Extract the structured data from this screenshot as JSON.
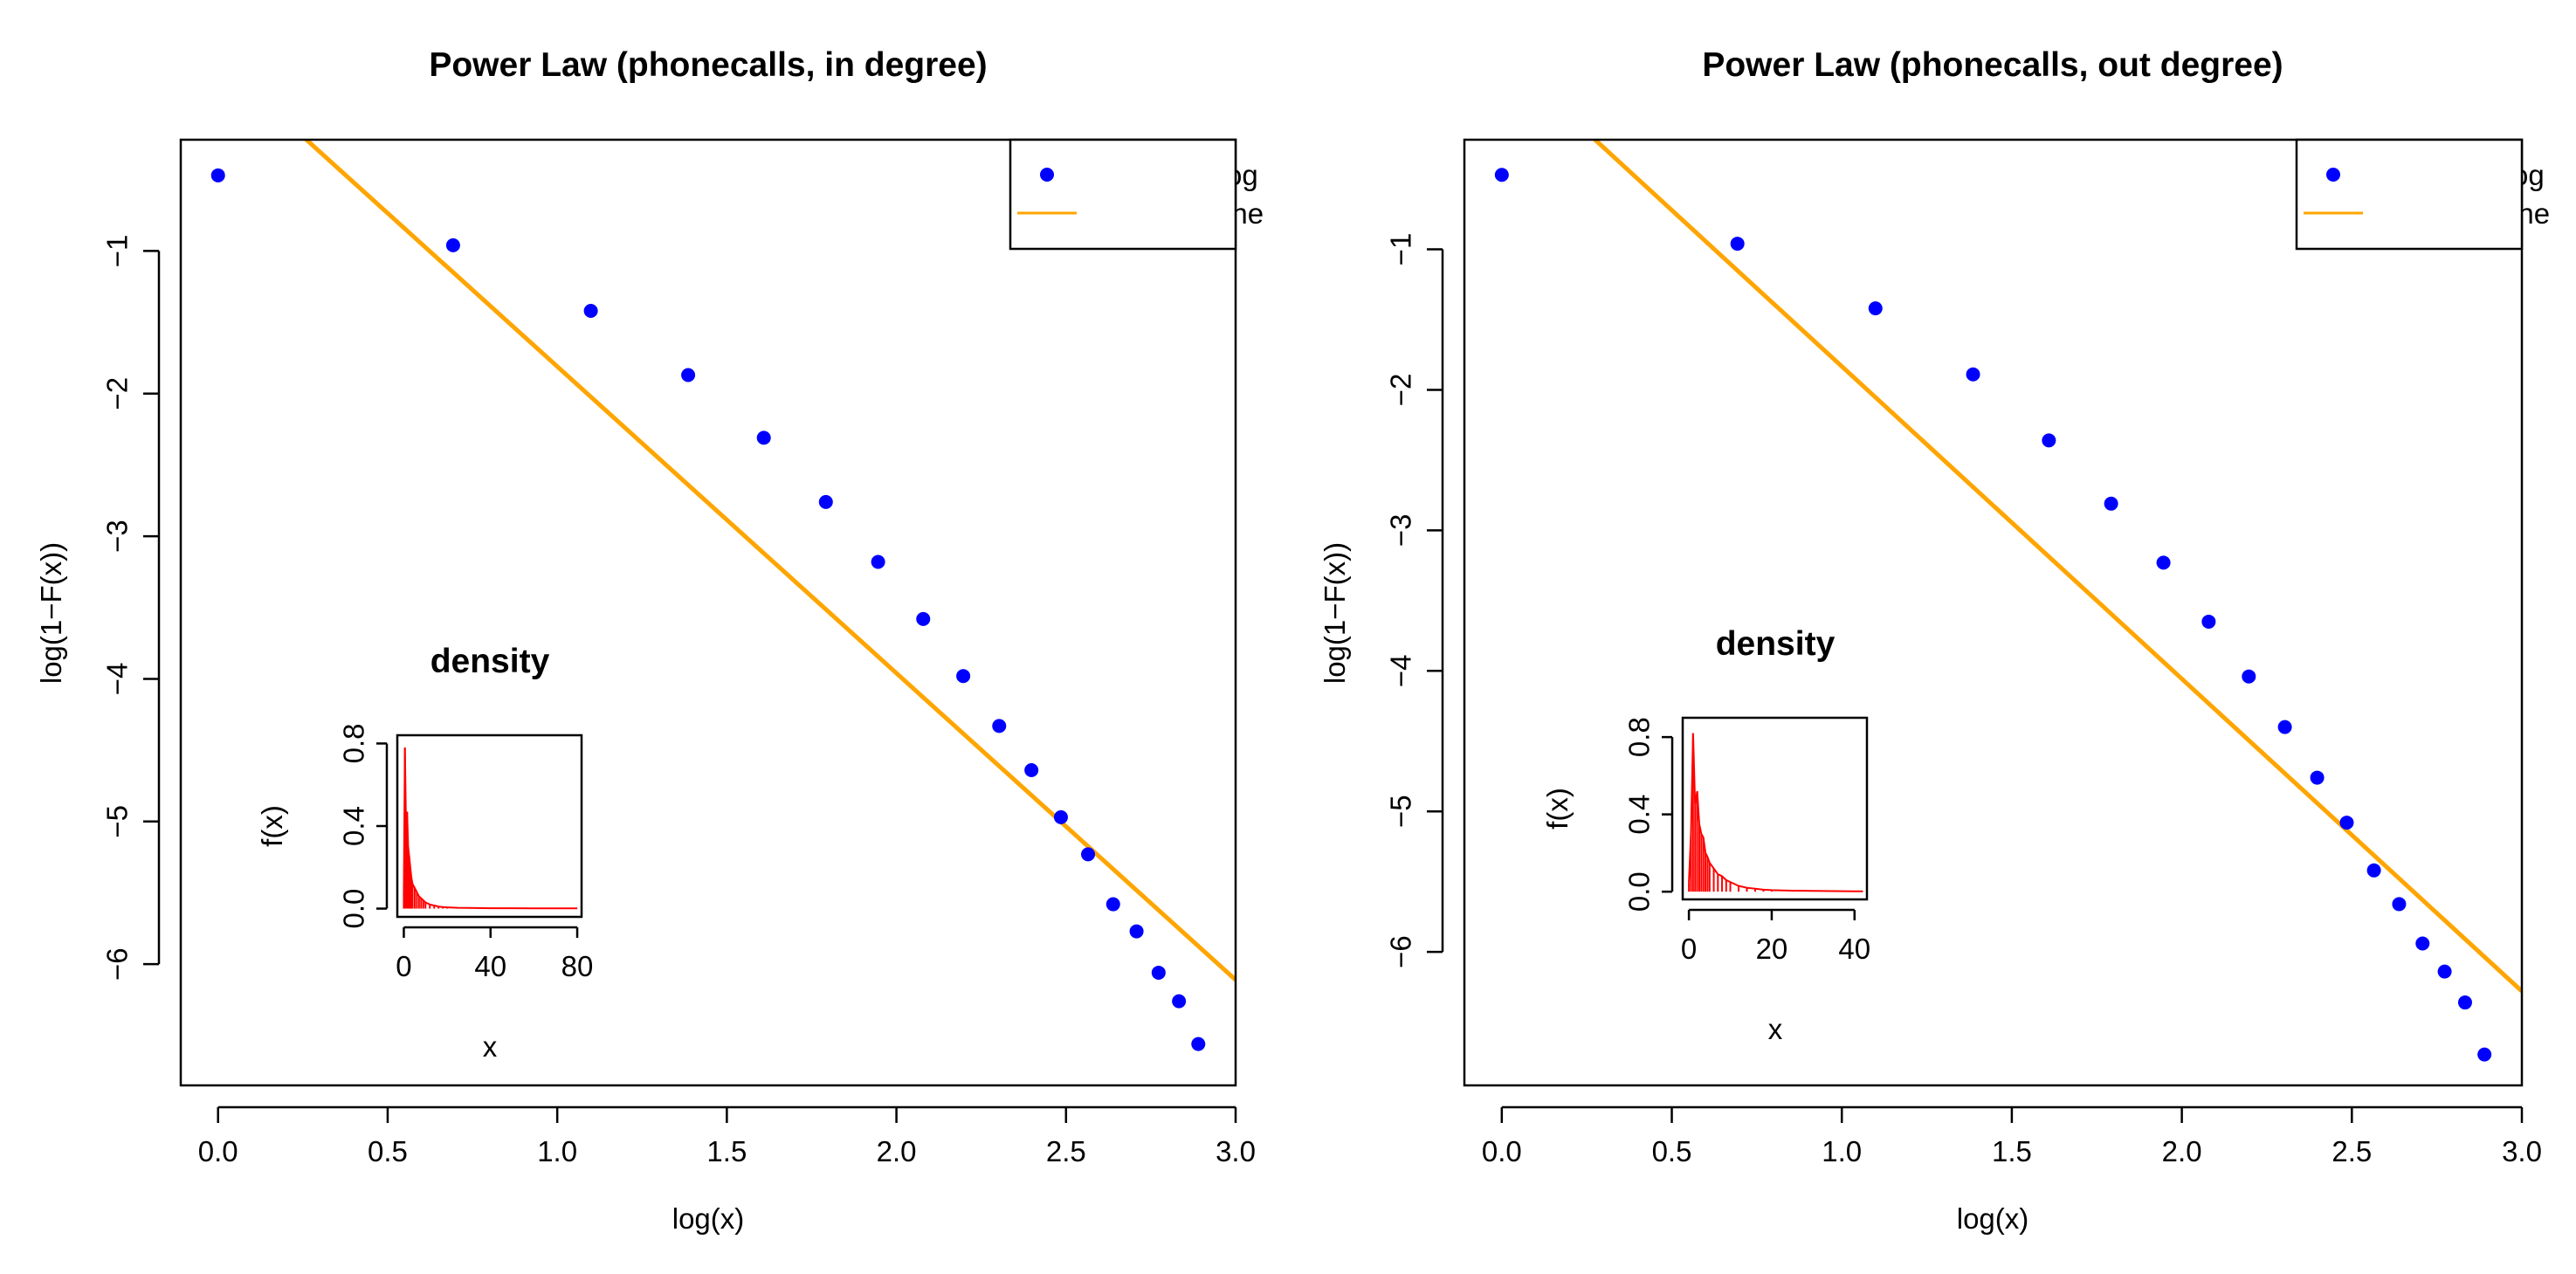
{
  "chart_data": [
    {
      "type": "scatter",
      "title": "Power Law (phonecalls, in degree)",
      "xlabel": "log(x)",
      "ylabel": "log(1−F(x))",
      "xlim": [
        -0.11,
        3.0
      ],
      "ylim": [
        -6.85,
        -0.22
      ],
      "x_ticks": [
        0.0,
        0.5,
        1.0,
        1.5,
        2.0,
        2.5,
        3.0
      ],
      "x_tick_labels": [
        "0.0",
        "0.5",
        "1.0",
        "1.5",
        "2.0",
        "2.5",
        "3.0"
      ],
      "y_ticks": [
        -1,
        -2,
        -3,
        -4,
        -5,
        -6
      ],
      "y_tick_labels": [
        "−1",
        "−2",
        "−3",
        "−4",
        "−5",
        "−6"
      ],
      "grid": false,
      "legend": {
        "position": "top-right",
        "entries": [
          "log − log",
          "fitted line"
        ]
      },
      "series": [
        {
          "name": "log − log",
          "kind": "points",
          "color": "#0000ff",
          "x": [
            0.0,
            0.693,
            1.099,
            1.386,
            1.609,
            1.792,
            1.946,
            2.079,
            2.197,
            2.303,
            2.398,
            2.485,
            2.565,
            2.639,
            2.708,
            2.773,
            2.833,
            2.89
          ],
          "y": [
            -0.47,
            -0.96,
            -1.42,
            -1.87,
            -2.31,
            -2.76,
            -3.18,
            -3.58,
            -3.98,
            -4.33,
            -4.64,
            -4.97,
            -5.23,
            -5.58,
            -5.77,
            -6.06,
            -6.26,
            -6.56
          ]
        },
        {
          "name": "fitted line",
          "kind": "line",
          "color": "#ffa500",
          "x": [
            0.0,
            3.0
          ],
          "y": [
            0.34,
            -6.11
          ]
        }
      ],
      "inset": {
        "type": "density",
        "title": "density",
        "xlabel": "x",
        "ylabel": "f(x)",
        "color": "#ff0000",
        "xlim": [
          -3.0,
          82.0
        ],
        "ylim": [
          -0.04,
          0.84
        ],
        "x_ticks": [
          0,
          40,
          80
        ],
        "x_tick_labels": [
          "0",
          "40",
          "80"
        ],
        "y_ticks": [
          0.0,
          0.4,
          0.8
        ],
        "y_tick_labels": [
          "0.0",
          "0.4",
          "0.8"
        ],
        "x": [
          0,
          0.5,
          1,
          1.5,
          2,
          2.5,
          3,
          3.5,
          4,
          5,
          6,
          7,
          8,
          9,
          10,
          12,
          14,
          16,
          18,
          20,
          25,
          30,
          40,
          50,
          60,
          70,
          80
        ],
        "y": [
          0.05,
          0.78,
          0.42,
          0.47,
          0.3,
          0.25,
          0.2,
          0.15,
          0.12,
          0.1,
          0.08,
          0.06,
          0.05,
          0.04,
          0.03,
          0.02,
          0.015,
          0.01,
          0.008,
          0.006,
          0.004,
          0.003,
          0.002,
          0.002,
          0.001,
          0.001,
          0.001
        ]
      }
    },
    {
      "type": "scatter",
      "title": "Power Law (phonecalls, out degree)",
      "xlabel": "log(x)",
      "ylabel": "log(1−F(x))",
      "xlim": [
        -0.11,
        3.0
      ],
      "ylim": [
        -6.95,
        -0.22
      ],
      "x_ticks": [
        0.0,
        0.5,
        1.0,
        1.5,
        2.0,
        2.5,
        3.0
      ],
      "x_tick_labels": [
        "0.0",
        "0.5",
        "1.0",
        "1.5",
        "2.0",
        "2.5",
        "3.0"
      ],
      "y_ticks": [
        -1,
        -2,
        -3,
        -4,
        -5,
        -6
      ],
      "y_tick_labels": [
        "−1",
        "−2",
        "−3",
        "−4",
        "−5",
        "−6"
      ],
      "grid": false,
      "legend": {
        "position": "top-right",
        "entries": [
          "log − log",
          "fitted line"
        ]
      },
      "series": [
        {
          "name": "log − log",
          "kind": "points",
          "color": "#0000ff",
          "x": [
            0.0,
            0.693,
            1.099,
            1.386,
            1.609,
            1.792,
            1.946,
            2.079,
            2.197,
            2.303,
            2.398,
            2.485,
            2.565,
            2.639,
            2.708,
            2.773,
            2.833,
            2.89
          ],
          "y": [
            -0.47,
            -0.96,
            -1.42,
            -1.89,
            -2.36,
            -2.81,
            -3.23,
            -3.65,
            -4.04,
            -4.4,
            -4.76,
            -5.08,
            -5.42,
            -5.66,
            -5.94,
            -6.14,
            -6.36,
            -6.73
          ]
        },
        {
          "name": "fitted line",
          "kind": "line",
          "color": "#ffa500",
          "x": [
            0.0,
            3.0
          ],
          "y": [
            0.39,
            -6.28
          ]
        }
      ],
      "inset": {
        "type": "density",
        "title": "density",
        "xlabel": "x",
        "ylabel": "f(x)",
        "color": "#ff0000",
        "xlim": [
          -1.5,
          43.0
        ],
        "ylim": [
          -0.04,
          0.9
        ],
        "x_ticks": [
          0,
          20,
          40
        ],
        "x_tick_labels": [
          "0",
          "20",
          "40"
        ],
        "y_ticks": [
          0.0,
          0.4,
          0.8
        ],
        "y_tick_labels": [
          "0.0",
          "0.4",
          "0.8"
        ],
        "x": [
          0,
          0.5,
          1,
          1.5,
          2,
          2.5,
          3,
          3.5,
          4,
          4.5,
          5,
          6,
          7,
          8,
          9,
          10,
          12,
          14,
          16,
          18,
          20,
          25,
          30,
          35,
          40,
          42
        ],
        "y": [
          0.05,
          0.3,
          0.82,
          0.45,
          0.52,
          0.35,
          0.3,
          0.28,
          0.2,
          0.18,
          0.15,
          0.12,
          0.09,
          0.08,
          0.06,
          0.05,
          0.03,
          0.02,
          0.015,
          0.01,
          0.008,
          0.005,
          0.004,
          0.003,
          0.002,
          0.002
        ]
      }
    }
  ]
}
